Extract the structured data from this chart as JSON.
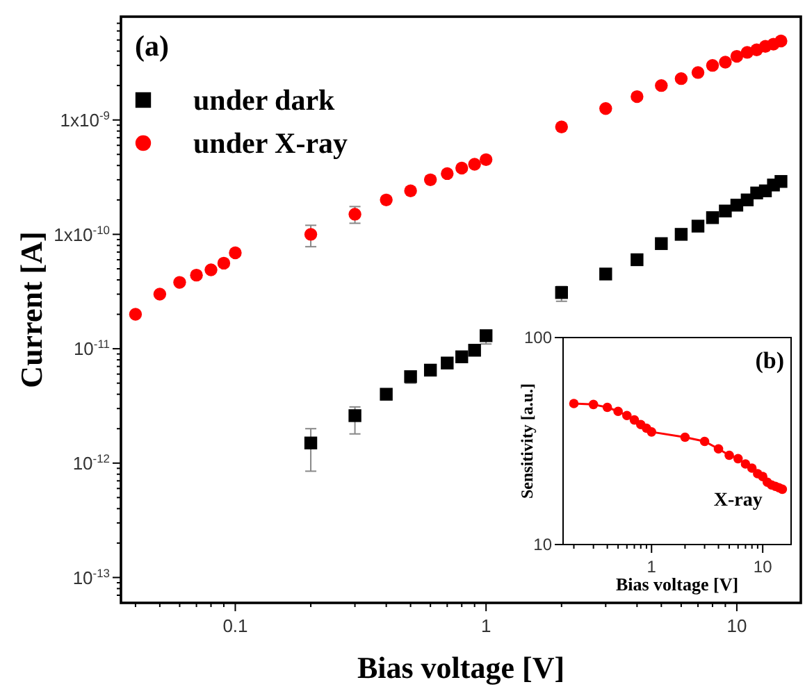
{
  "chart_data": [
    {
      "type": "scatter",
      "xlabel": "Bias voltage [V]",
      "ylabel": "Current [A]",
      "annotations": [
        "(a)"
      ],
      "log": "xy",
      "legend": "top left",
      "xlim": [
        0.035,
        18
      ],
      "ylim": [
        6e-14,
        8e-09
      ],
      "xticks": [
        {
          "value": 0.04,
          "label": null
        },
        {
          "value": 0.05,
          "label": null
        },
        {
          "value": 0.06,
          "label": null
        },
        {
          "value": 0.07,
          "label": null
        },
        {
          "value": 0.08,
          "label": null
        },
        {
          "value": 0.09,
          "label": null
        },
        0.1,
        {
          "value": 0.2,
          "label": null
        },
        {
          "value": 0.3,
          "label": null
        },
        {
          "value": 0.4,
          "label": null
        },
        {
          "value": 0.5,
          "label": null
        },
        {
          "value": 0.6,
          "label": null
        },
        {
          "value": 0.7,
          "label": null
        },
        {
          "value": 0.8,
          "label": null
        },
        {
          "value": 0.9,
          "label": null
        },
        1,
        {
          "value": 2,
          "label": null
        },
        {
          "value": 3,
          "label": null
        },
        {
          "value": 4,
          "label": null
        },
        {
          "value": 5,
          "label": null
        },
        {
          "value": 6,
          "label": null
        },
        {
          "value": 7,
          "label": null
        },
        {
          "value": 8,
          "label": null
        },
        {
          "value": 9,
          "label": null
        },
        10
      ],
      "yticks": [
        {
          "value": 7e-14,
          "label": null
        },
        {
          "value": 8e-14,
          "label": null
        },
        {
          "value": 9e-14,
          "label": null
        },
        {
          "value": 1e-13,
          "label": "10$^{-13}$"
        },
        {
          "value": 2e-13,
          "label": null
        },
        {
          "value": 3e-13,
          "label": null
        },
        {
          "value": 4e-13,
          "label": null
        },
        {
          "value": 5e-13,
          "label": null
        },
        {
          "value": 6e-13,
          "label": null
        },
        {
          "value": 7e-13,
          "label": null
        },
        {
          "value": 8e-13,
          "label": null
        },
        {
          "value": 9e-13,
          "label": null
        },
        {
          "value": 1e-12,
          "label": "10$^{-12}$"
        },
        {
          "value": 2e-12,
          "label": null
        },
        {
          "value": 3e-12,
          "label": null
        },
        {
          "value": 4e-12,
          "label": null
        },
        {
          "value": 5e-12,
          "label": null
        },
        {
          "value": 6e-12,
          "label": null
        },
        {
          "value": 7e-12,
          "label": null
        },
        {
          "value": 8e-12,
          "label": null
        },
        {
          "value": 9e-12,
          "label": null
        },
        {
          "value": 1e-11,
          "label": "10$^{-11}$"
        },
        {
          "value": 2e-11,
          "label": null
        },
        {
          "value": 3e-11,
          "label": null
        },
        {
          "value": 4e-11,
          "label": null
        },
        {
          "value": 5e-11,
          "label": null
        },
        {
          "value": 6e-11,
          "label": null
        },
        {
          "value": 7e-11,
          "label": null
        },
        {
          "value": 8e-11,
          "label": null
        },
        {
          "value": 9e-11,
          "label": null
        },
        {
          "value": 1e-10,
          "label": "1x10$^{-10}$"
        },
        {
          "value": 2e-10,
          "label": null
        },
        {
          "value": 3e-10,
          "label": null
        },
        {
          "value": 4e-10,
          "label": null
        },
        {
          "value": 5e-10,
          "label": null
        },
        {
          "value": 6e-10,
          "label": null
        },
        {
          "value": 7e-10,
          "label": null
        },
        {
          "value": 8e-10,
          "label": null
        },
        {
          "value": 9e-10,
          "label": null
        },
        {
          "value": 1e-09,
          "label": "1x10$^{-9}$"
        },
        {
          "value": 2e-09,
          "label": null
        },
        {
          "value": 3e-09,
          "label": null
        },
        {
          "value": 4e-09,
          "label": null
        },
        {
          "value": 5e-09,
          "label": null
        },
        {
          "value": 6e-09,
          "label": null
        },
        {
          "value": 7e-09,
          "label": null
        }
      ],
      "series": [
        {
          "name": "under dark",
          "color": "#000000",
          "marker": "square",
          "x": [
            0.2,
            0.3,
            0.4,
            0.5,
            0.6,
            0.7,
            0.8,
            0.9,
            1,
            2,
            3,
            4,
            5,
            6,
            7,
            8,
            9,
            10,
            11,
            12,
            13,
            14,
            15
          ],
          "values": [
            1.5e-12,
            2.6e-12,
            4e-12,
            5.7e-12,
            6.5e-12,
            7.5e-12,
            8.5e-12,
            9.7e-12,
            1.3e-11,
            3.1e-11,
            4.5e-11,
            6e-11,
            8.3e-11,
            1e-10,
            1.18e-10,
            1.4e-10,
            1.6e-10,
            1.8e-10,
            2e-10,
            2.3e-10,
            2.4e-10,
            2.7e-10,
            2.9e-10
          ],
          "errors": [
            [
              8.5e-13,
              2e-12
            ],
            [
              1.8e-12,
              3.1e-12
            ],
            null,
            [
              5e-12,
              6.2e-12
            ],
            null,
            null,
            null,
            null,
            [
              1.1e-11,
              1.45e-11
            ],
            [
              2.6e-11,
              3.5e-11
            ],
            null,
            null,
            null,
            null,
            null,
            null,
            null,
            null,
            null,
            null,
            null,
            null,
            null
          ]
        },
        {
          "name": "under X-ray",
          "color": "#ff0000",
          "marker": "circle",
          "x": [
            0.04,
            0.05,
            0.06,
            0.07,
            0.08,
            0.09,
            0.1,
            0.2,
            0.3,
            0.4,
            0.5,
            0.6,
            0.7,
            0.8,
            0.9,
            1,
            2,
            3,
            4,
            5,
            6,
            7,
            8,
            9,
            10,
            11,
            12,
            13,
            14,
            15
          ],
          "values": [
            2e-11,
            3e-11,
            3.8e-11,
            4.4e-11,
            4.9e-11,
            5.6e-11,
            6.9e-11,
            1e-10,
            1.5e-10,
            2e-10,
            2.4e-10,
            3e-10,
            3.4e-10,
            3.8e-10,
            4.1e-10,
            4.5e-10,
            8.7e-10,
            1.26e-09,
            1.6e-09,
            2e-09,
            2.3e-09,
            2.6e-09,
            3e-09,
            3.2e-09,
            3.6e-09,
            3.9e-09,
            4.1e-09,
            4.4e-09,
            4.6e-09,
            4.9e-09
          ],
          "errors": [
            null,
            null,
            null,
            null,
            null,
            null,
            null,
            [
              7.8e-11,
              1.2e-10
            ],
            [
              1.25e-10,
              1.75e-10
            ],
            null,
            null,
            null,
            null,
            null,
            null,
            null,
            null,
            null,
            null,
            null,
            null,
            null,
            null,
            null,
            null,
            null,
            null,
            null,
            null,
            null
          ]
        }
      ]
    },
    {
      "type": "line",
      "xlabel": "Bias voltage [V]",
      "ylabel": "Sensitivity [a.u.]",
      "annotations": [
        "(b)"
      ],
      "log": "xy",
      "legend": false,
      "marker": "circle",
      "line_style": "solid",
      "xlim": [
        0.16,
        18
      ],
      "ylim": [
        10,
        100
      ],
      "xticks": [
        {
          "value": 0.2,
          "label": null
        },
        {
          "value": 0.3,
          "label": null
        },
        {
          "value": 0.4,
          "label": null
        },
        {
          "value": 0.5,
          "label": null
        },
        {
          "value": 0.6,
          "label": null
        },
        {
          "value": 0.7,
          "label": null
        },
        {
          "value": 0.8,
          "label": null
        },
        {
          "value": 0.9,
          "label": null
        },
        1,
        {
          "value": 2,
          "label": null
        },
        {
          "value": 3,
          "label": null
        },
        {
          "value": 4,
          "label": null
        },
        {
          "value": 5,
          "label": null
        },
        {
          "value": 6,
          "label": null
        },
        {
          "value": 7,
          "label": null
        },
        {
          "value": 8,
          "label": null
        },
        {
          "value": 9,
          "label": null
        },
        10
      ],
      "yticks": [
        10,
        100
      ],
      "series": [
        {
          "name": "X-ray",
          "color": "#ff0000",
          "x": [
            0.2,
            0.3,
            0.4,
            0.5,
            0.6,
            0.7,
            0.8,
            0.9,
            1,
            2,
            3,
            4,
            5,
            6,
            7,
            8,
            9,
            10,
            11,
            12,
            13,
            14,
            15
          ],
          "values": [
            48,
            47.5,
            46,
            44,
            42,
            40,
            38,
            36.5,
            35,
            33,
            31.5,
            29,
            27,
            26,
            24.5,
            23.4,
            22,
            21.3,
            20,
            19.4,
            19.1,
            18.8,
            18.5
          ]
        }
      ]
    }
  ]
}
